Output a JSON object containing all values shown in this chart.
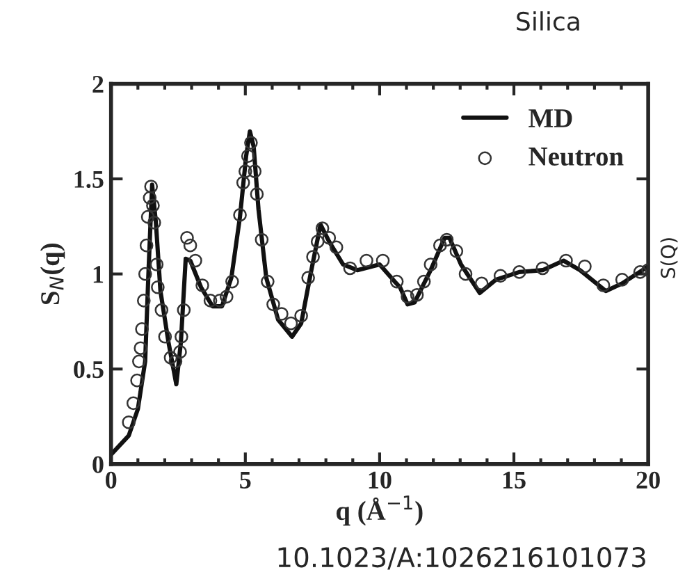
{
  "chart_data": {
    "type": "line",
    "title": "Silica",
    "xlabel": "q (Å$^{−1}$)",
    "ylabel": "S$_{N}$(q)",
    "y2label": "S(Q)",
    "annotations": [
      "10.1023/A:1026216101073"
    ],
    "xlim": [
      0,
      20
    ],
    "ylim": [
      0,
      2
    ],
    "xticks": [
      0,
      5,
      10,
      15,
      20
    ],
    "yticks": [
      0,
      0.5,
      1,
      1.5,
      2
    ],
    "grid": false,
    "legend": "top right",
    "series": [
      {
        "name": "MD",
        "color": "#111111",
        "marker": "none",
        "line_style": "solid",
        "x": [
          0,
          0.66,
          1.0,
          1.27,
          1.4,
          1.53,
          1.67,
          1.84,
          2.14,
          2.43,
          2.6,
          2.78,
          2.95,
          3.35,
          3.78,
          4.13,
          4.48,
          4.8,
          5.03,
          5.17,
          5.31,
          5.49,
          5.78,
          6.22,
          6.74,
          7.08,
          7.43,
          7.8,
          8.12,
          8.64,
          9.17,
          10.0,
          10.56,
          10.76,
          11.04,
          11.3,
          11.9,
          12.42,
          12.6,
          13.03,
          13.73,
          14.33,
          15.2,
          16.07,
          16.85,
          17.46,
          18.42,
          19.03,
          20
        ],
        "values": [
          0.05,
          0.15,
          0.29,
          0.54,
          1.03,
          1.47,
          1.27,
          0.91,
          0.64,
          0.42,
          0.64,
          1.08,
          1.07,
          0.93,
          0.83,
          0.83,
          0.98,
          1.3,
          1.62,
          1.75,
          1.67,
          1.34,
          0.98,
          0.76,
          0.67,
          0.74,
          1.0,
          1.26,
          1.17,
          1.05,
          1.02,
          1.05,
          0.96,
          0.93,
          0.84,
          0.85,
          1.02,
          1.19,
          1.19,
          1.05,
          0.9,
          0.97,
          1.01,
          1.02,
          1.07,
          1.02,
          0.91,
          0.95,
          1.04
        ]
      },
      {
        "name": "Neutron",
        "type": "scatter",
        "color": "#333333",
        "marker": "circle",
        "x": [
          0.66,
          0.83,
          0.97,
          1.04,
          1.1,
          1.15,
          1.22,
          1.27,
          1.32,
          1.37,
          1.44,
          1.49,
          1.56,
          1.61,
          1.7,
          1.74,
          1.88,
          2.01,
          2.22,
          2.4,
          2.57,
          2.62,
          2.71,
          2.83,
          2.95,
          3.14,
          3.4,
          3.7,
          4.05,
          4.3,
          4.51,
          4.8,
          4.92,
          5.0,
          5.1,
          5.21,
          5.35,
          5.43,
          5.61,
          5.83,
          6.04,
          6.35,
          6.7,
          7.08,
          7.34,
          7.52,
          7.69,
          7.87,
          8.12,
          8.39,
          8.9,
          9.51,
          10.12,
          10.64,
          11.04,
          11.39,
          11.65,
          11.9,
          12.25,
          12.5,
          12.86,
          13.2,
          13.8,
          14.5,
          15.2,
          16.07,
          16.94,
          17.64,
          18.33,
          19.03,
          19.7,
          20
        ],
        "values": [
          0.22,
          0.32,
          0.44,
          0.54,
          0.61,
          0.71,
          0.86,
          1.0,
          1.15,
          1.3,
          1.4,
          1.46,
          1.36,
          1.27,
          1.05,
          0.93,
          0.81,
          0.67,
          0.56,
          0.54,
          0.59,
          0.67,
          0.81,
          1.19,
          1.15,
          1.07,
          0.94,
          0.86,
          0.86,
          0.88,
          0.96,
          1.31,
          1.48,
          1.54,
          1.62,
          1.69,
          1.54,
          1.42,
          1.18,
          0.96,
          0.84,
          0.79,
          0.74,
          0.78,
          0.98,
          1.09,
          1.17,
          1.24,
          1.19,
          1.14,
          1.03,
          1.07,
          1.07,
          0.96,
          0.88,
          0.89,
          0.96,
          1.05,
          1.15,
          1.18,
          1.12,
          1.0,
          0.95,
          0.99,
          1.01,
          1.03,
          1.07,
          1.04,
          0.94,
          0.97,
          1.01,
          1.02
        ]
      }
    ]
  }
}
